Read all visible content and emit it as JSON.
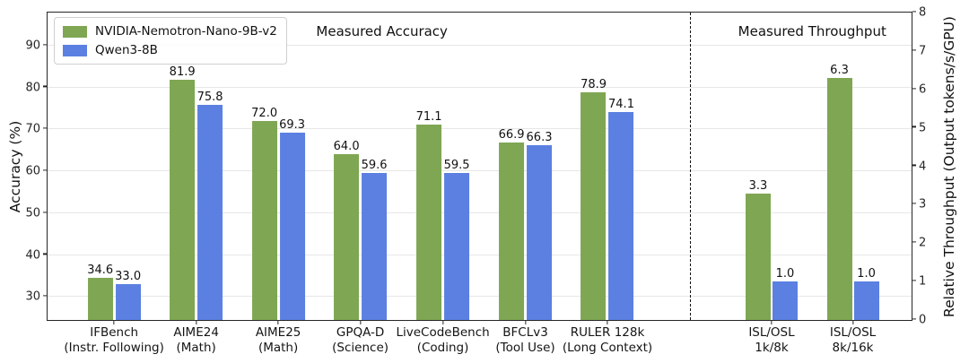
{
  "legend": {
    "items": [
      {
        "label": "NVIDIA-Nemotron-Nano-9B-v2",
        "color": "#7fa653"
      },
      {
        "label": "Qwen3-8B",
        "color": "#5b80e1"
      }
    ]
  },
  "section_titles": {
    "accuracy": "Measured Accuracy",
    "throughput": "Measured Throughput"
  },
  "left_axis": {
    "label": "Accuracy (%)",
    "ticks": [
      30,
      40,
      50,
      60,
      70,
      80,
      90
    ]
  },
  "right_axis": {
    "label": "Relative Throughput (Output tokens/s/GPU)",
    "ticks": [
      0,
      1,
      2,
      3,
      4,
      5,
      6,
      7,
      8
    ]
  },
  "chart_data": {
    "type": "bar",
    "grid": "horizontal",
    "legend_position": "upper-left",
    "left_ylim": [
      24.5,
      97.9
    ],
    "right_ylim": [
      0,
      8
    ],
    "categories": [
      {
        "line1": "IFBench",
        "line2": "(Instr. Following)",
        "axis": "left"
      },
      {
        "line1": "AIME24",
        "line2": "(Math)",
        "axis": "left"
      },
      {
        "line1": "AIME25",
        "line2": "(Math)",
        "axis": "left"
      },
      {
        "line1": "GPQA-D",
        "line2": "(Science)",
        "axis": "left"
      },
      {
        "line1": "LiveCodeBench",
        "line2": "(Coding)",
        "axis": "left"
      },
      {
        "line1": "BFCLv3",
        "line2": "(Tool Use)",
        "axis": "left"
      },
      {
        "line1": "RULER 128k",
        "line2": "(Long Context)",
        "axis": "left"
      },
      {
        "line1": "ISL/OSL",
        "line2": "1k/8k",
        "axis": "right"
      },
      {
        "line1": "ISL/OSL",
        "line2": "8k/16k",
        "axis": "right"
      }
    ],
    "series": [
      {
        "name": "NVIDIA-Nemotron-Nano-9B-v2",
        "color": "#7fa653",
        "values": [
          34.6,
          81.9,
          72.0,
          64.0,
          71.1,
          66.9,
          78.9,
          3.3,
          6.3
        ]
      },
      {
        "name": "Qwen3-8B",
        "color": "#5b80e1",
        "values": [
          33.0,
          75.8,
          69.3,
          59.6,
          59.5,
          66.3,
          74.1,
          1.0,
          1.0
        ]
      }
    ]
  }
}
